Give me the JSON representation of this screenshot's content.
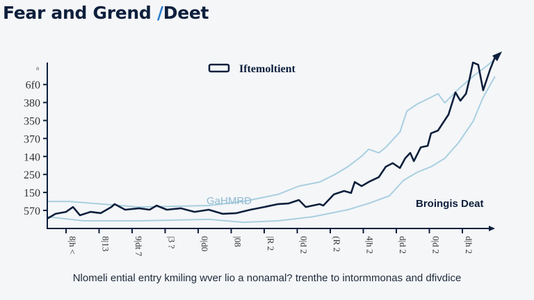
{
  "title": {
    "main": "Fear and Grend ",
    "slash": "/",
    "tail": "Deet"
  },
  "caption": "Nlomeli ential entry kmiling wver lio a nonamal? trenthe to intormmonas and dfivdice",
  "colors": {
    "main_series": "#0d1f3c",
    "band": "#a9cfe0",
    "accent": "#2f7fd0",
    "background": "#f4f6f8"
  },
  "chart_data": {
    "type": "line",
    "title": "Fear and Grend /Deet",
    "grid": false,
    "legend": {
      "placement": "top-center",
      "entries": [
        "Iftemoltient"
      ]
    },
    "annotations": [
      "GaHMRD",
      "Broingis Deat"
    ],
    "y_ticks": [
      "570",
      "150",
      "250",
      "140",
      "370",
      "350",
      "380",
      "6f0",
      "a"
    ],
    "x_ticks": [
      "8|h <",
      "8|13",
      "9|dt 7",
      "|3 ?",
      "0|d0",
      "|08",
      "|R 2",
      "0|d 2",
      "(R 2",
      "4|h 2",
      "d|d 2",
      "0|d 2",
      "d|h 2"
    ],
    "note": "",
    "series": [
      {
        "name": "Iftemoltient",
        "role": "main",
        "x": [
          -0.57,
          -0.32,
          0,
          0.21,
          0.42,
          0.74,
          1.05,
          1.37,
          1.47,
          1.79,
          2.21,
          2.53,
          2.74,
          3.05,
          3.47,
          3.89,
          4.32,
          4.74,
          5.16,
          5.58,
          6.0,
          6.42,
          6.74,
          7.05,
          7.26,
          7.68,
          7.79,
          8.11,
          8.42,
          8.63,
          8.74,
          8.95,
          9.16,
          9.47,
          9.68,
          9.89,
          10.11,
          10.27,
          10.42,
          10.53,
          10.74,
          10.95,
          11.05,
          11.26,
          11.37,
          11.58,
          11.79,
          11.94,
          12.11,
          12.21,
          12.32,
          12.48,
          12.63,
          12.84,
          12.99
        ],
        "y": [
          -0.46,
          -0.19,
          -0.08,
          0.19,
          -0.27,
          -0.08,
          -0.15,
          0.19,
          0.35,
          0.04,
          0.12,
          0.04,
          0.27,
          0.04,
          0.12,
          -0.08,
          0.04,
          -0.19,
          -0.15,
          0.04,
          0.19,
          0.35,
          0.39,
          0.58,
          0.19,
          0.35,
          0.27,
          0.89,
          1.08,
          0.97,
          1.58,
          1.35,
          1.58,
          1.85,
          2.43,
          2.63,
          2.36,
          2.9,
          3.2,
          2.74,
          3.51,
          3.59,
          4.29,
          4.44,
          4.75,
          5.33,
          6.56,
          6.1,
          6.49,
          7.26,
          8.22,
          8.1,
          6.68,
          7.84,
          8.53
        ]
      },
      {
        "role": "upper-band",
        "x": [
          -0.57,
          0.11,
          2.21,
          4.32,
          5.37,
          6.42,
          7.05,
          7.68,
          8.11,
          8.53,
          8.95,
          9.16,
          9.47,
          9.68,
          10.11,
          10.32,
          10.63,
          11.05,
          11.26,
          11.47,
          11.89,
          12.32,
          12.74,
          12.99
        ],
        "y": [
          0.5,
          0.5,
          0.19,
          0.27,
          0.5,
          0.89,
          1.35,
          1.58,
          1.97,
          2.43,
          3.01,
          3.4,
          3.2,
          3.51,
          4.36,
          5.52,
          5.91,
          6.29,
          6.49,
          5.98,
          6.76,
          7.45,
          8.03,
          8.42
        ]
      },
      {
        "role": "lower-band",
        "x": [
          -0.57,
          0.53,
          2.21,
          4.32,
          5.37,
          6.42,
          7.47,
          8.53,
          9.16,
          9.79,
          10.21,
          10.63,
          11.05,
          11.47,
          11.89,
          12.32,
          12.63,
          12.99
        ],
        "y": [
          -0.35,
          -0.58,
          -0.58,
          -0.5,
          -0.66,
          -0.58,
          -0.35,
          0.04,
          0.39,
          0.81,
          1.66,
          2.12,
          2.43,
          2.9,
          3.78,
          4.94,
          6.29,
          7.45
        ]
      }
    ]
  }
}
